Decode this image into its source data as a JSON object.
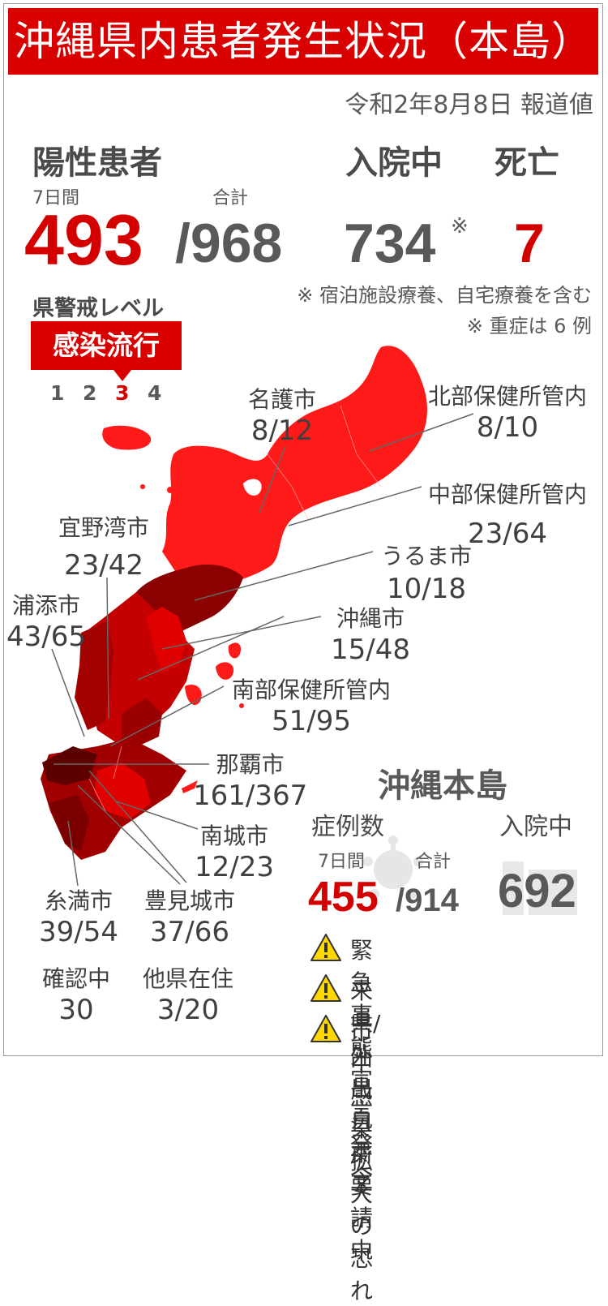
{
  "title": "沖縄県内患者発生状況（本島）",
  "report_date": "令和2年8月8日 報道値",
  "positive": {
    "heading": "陽性患者",
    "week_label": "7日間",
    "total_label": "合計",
    "week_value": "493",
    "total_value": "/968"
  },
  "hospitalized": {
    "heading": "入院中",
    "value": "734",
    "mark": "※"
  },
  "deaths": {
    "heading": "死亡",
    "value": "7"
  },
  "notes": [
    "※ 宿泊施設療養、自宅療養を含む",
    "※ 重症は 6 例"
  ],
  "alert": {
    "heading": "県警戒レベル",
    "stage": "感染流行",
    "levels": [
      "1",
      "2",
      "3",
      "4"
    ],
    "active_level": "3"
  },
  "regions": [
    {
      "name": "名護市",
      "value": "8/12"
    },
    {
      "name": "北部保健所管内",
      "value": "8/10"
    },
    {
      "name": "中部保健所管内",
      "value": "23/64"
    },
    {
      "name": "宜野湾市",
      "value": "23/42"
    },
    {
      "name": "うるま市",
      "value": "10/18"
    },
    {
      "name": "浦添市",
      "value": "43/65"
    },
    {
      "name": "沖縄市",
      "value": "15/48"
    },
    {
      "name": "南部保健所管内",
      "value": "51/95"
    },
    {
      "name": "那覇市",
      "value": "161/367"
    },
    {
      "name": "南城市",
      "value": "12/23"
    },
    {
      "name": "糸満市",
      "value": "39/54"
    },
    {
      "name": "豊見城市",
      "value": "37/66"
    },
    {
      "name": "確認中",
      "value": "30"
    },
    {
      "name": "他県在住",
      "value": "3/20"
    }
  ],
  "main_island": {
    "heading": "沖縄本島",
    "cases_label": "症例数",
    "week_label": "7日間",
    "total_label": "合計",
    "week_value": "455",
    "total_value": "/914",
    "hospitalized_label": "入院中",
    "hospitalized_value": "692"
  },
  "warnings": [
    "緊急事態宣言発令",
    "来県/外出自粛要請中",
    "市中感染拡大の恐れ"
  ],
  "colors": {
    "red": "#d90000",
    "map_light": "#ff1a1a",
    "map_dark": "#5c0000",
    "warning_yellow": "#ffd800"
  },
  "icons": [
    "warning-icon",
    "virus-icon",
    "okinawa-map"
  ]
}
